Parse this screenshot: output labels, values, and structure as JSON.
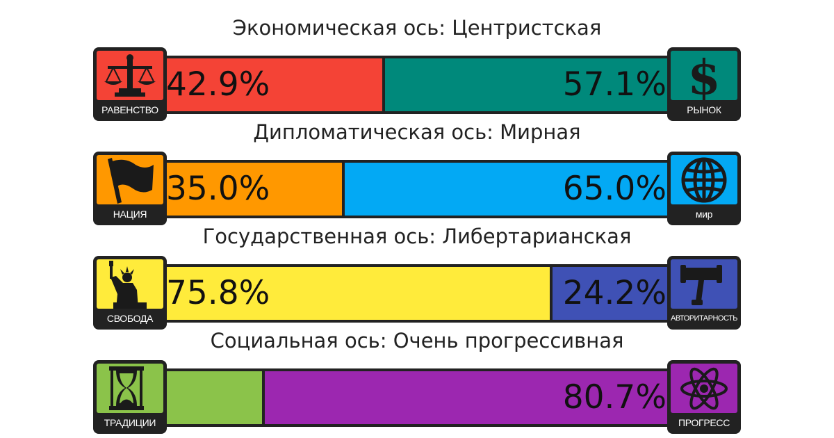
{
  "chart_data": [
    {
      "type": "bar",
      "title": "Экономическая ось: Центристская",
      "series": [
        {
          "name": "Равенство",
          "values": [
            42.9
          ],
          "label": "42.9%"
        },
        {
          "name": "Рынок",
          "values": [
            57.1
          ],
          "label": "57.1%"
        }
      ],
      "colors": [
        "#f44336",
        "#00897b"
      ],
      "ylim": [
        0,
        100
      ],
      "left_badge": {
        "label": "РАВЕНСТВО",
        "icon": "scales-icon"
      },
      "right_badge": {
        "label": "РЫНОК",
        "icon": "dollar-icon"
      }
    },
    {
      "type": "bar",
      "title": "Дипломатическая ось: Мирная",
      "series": [
        {
          "name": "Нация",
          "values": [
            35.0
          ],
          "label": "35.0%"
        },
        {
          "name": "Мир",
          "values": [
            65.0
          ],
          "label": "65.0%"
        }
      ],
      "colors": [
        "#ff9800",
        "#03a9f4"
      ],
      "ylim": [
        0,
        100
      ],
      "left_badge": {
        "label": "НАЦИЯ",
        "icon": "flag-icon"
      },
      "right_badge": {
        "label": "мир",
        "icon": "globe-icon"
      }
    },
    {
      "type": "bar",
      "title": "Государственная ось: Либертарианская",
      "series": [
        {
          "name": "Свобода",
          "values": [
            75.8
          ],
          "label": "75.8%"
        },
        {
          "name": "Авторитарность",
          "values": [
            24.2
          ],
          "label": "24.2%"
        }
      ],
      "colors": [
        "#ffeb3b",
        "#3f51b5"
      ],
      "ylim": [
        0,
        100
      ],
      "left_badge": {
        "label": "СВОБОДА",
        "icon": "statue-of-liberty-icon"
      },
      "right_badge": {
        "label": "АВТОРИТАРНОСТЬ",
        "icon": "gavel-icon"
      }
    },
    {
      "type": "bar",
      "title": "Социальная ось: Очень прогрессивная",
      "series": [
        {
          "name": "Традиции",
          "values": [
            19.3
          ],
          "label": ""
        },
        {
          "name": "Прогресс",
          "values": [
            80.7
          ],
          "label": "80.7%"
        }
      ],
      "colors": [
        "#8bc34a",
        "#9c27b0"
      ],
      "ylim": [
        0,
        100
      ],
      "left_badge": {
        "label": "ТРАДИЦИИ",
        "icon": "hourglass-icon"
      },
      "right_badge": {
        "label": "ПРОГРЕСС",
        "icon": "atom-icon"
      }
    }
  ]
}
